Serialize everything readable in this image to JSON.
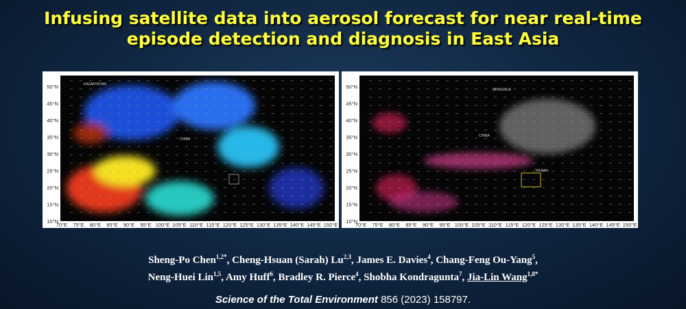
{
  "title": {
    "line1": "Infusing satellite data into aerosol forecast for near real-time",
    "line2": "episode detection and diagnosis in East Asia"
  },
  "maps": [
    {
      "lat_labels": [
        "10°N",
        "15°N",
        "20°N",
        "25°N",
        "30°N",
        "35°N",
        "40°N",
        "45°N",
        "50°N"
      ],
      "lon_labels": [
        "70°E",
        "75°E",
        "80°E",
        "85°E",
        "90°E",
        "95°E",
        "100°E",
        "105°E",
        "110°E",
        "115°E",
        "120°E",
        "125°E",
        "130°E",
        "135°E",
        "140°E",
        "145°E",
        "150°E"
      ],
      "place_labels": [
        "KAZAKHSTAN",
        "CHINA"
      ]
    },
    {
      "lat_labels": [
        "10°N",
        "15°N",
        "20°N",
        "25°N",
        "30°N",
        "35°N",
        "40°N",
        "45°N",
        "50°N"
      ],
      "lon_labels": [
        "70°E",
        "75°E",
        "80°E",
        "85°E",
        "90°E",
        "95°E",
        "100°E",
        "105°E",
        "110°E",
        "115°E",
        "120°E",
        "125°E",
        "130°E",
        "135°E",
        "140°E",
        "145°E",
        "150°E"
      ],
      "place_labels": [
        "MONGOLIA",
        "CHINA",
        "TAIWAN"
      ]
    }
  ],
  "authors": {
    "lines": [
      [
        {
          "name": "Sheng-Po Chen",
          "sup": "1,2*"
        },
        {
          "name": "Cheng-Hsuan (Sarah) Lu",
          "sup": "2,3"
        },
        {
          "name": "James E. Davies",
          "sup": "4"
        },
        {
          "name": "Chang-Feng Ou-Yang",
          "sup": "5"
        }
      ],
      [
        {
          "name": "Neng-Huei Lin",
          "sup": "1,5"
        },
        {
          "name": "Amy Huff",
          "sup": "6"
        },
        {
          "name": "Bradley R. Pierce",
          "sup": "4"
        },
        {
          "name": "Shobha Kondragunta",
          "sup": "7"
        },
        {
          "name": "Jia-Lin Wang",
          "sup": "1,8*"
        }
      ]
    ]
  },
  "citation": {
    "journal": "Science of the Total Environment",
    "details": "856 (2023) 158797."
  }
}
